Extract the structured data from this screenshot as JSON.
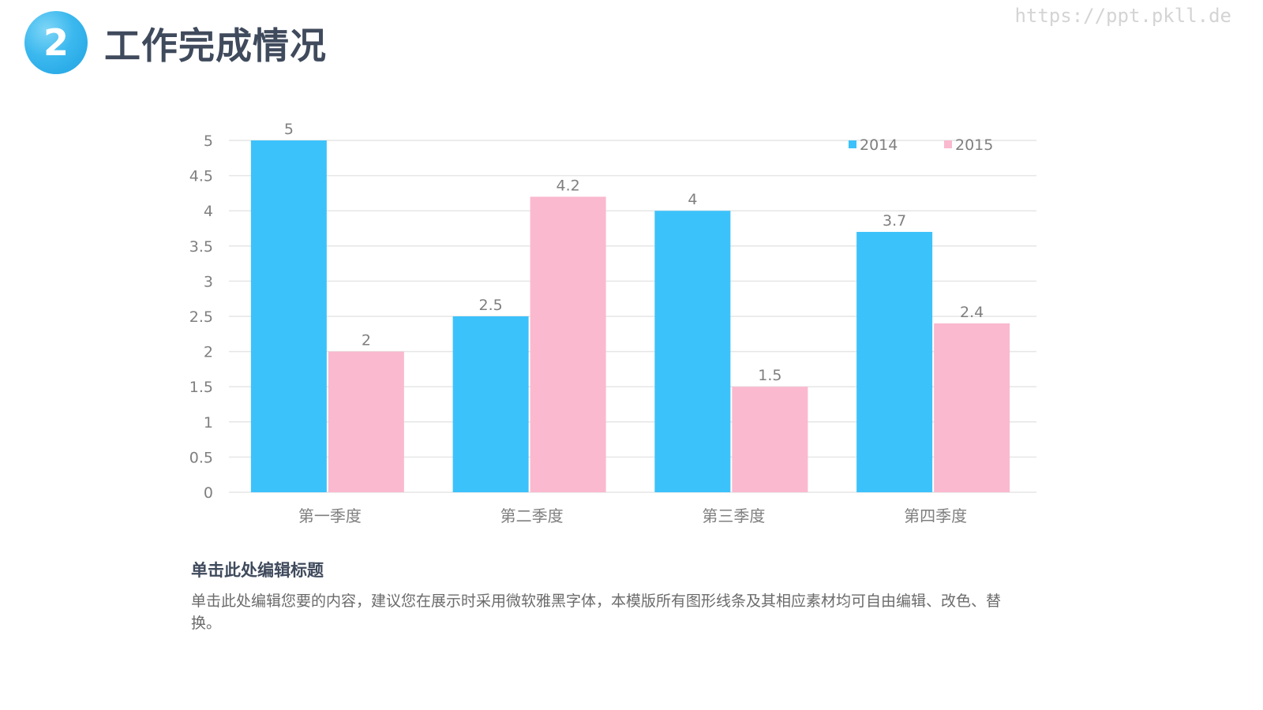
{
  "header": {
    "badge_number": "2",
    "title": "工作完成情况",
    "watermark": "https://ppt.pkll.de"
  },
  "caption": {
    "title": "单击此处编辑标题",
    "body": "单击此处编辑您要的内容，建议您在展示时采用微软雅黑字体，本模版所有图形线条及其相应素材均可自由编辑、改色、替换。"
  },
  "colors": {
    "series_2014": "#3cc2fb",
    "series_2015": "#fab9cf",
    "grid": "#e6e6e6",
    "badge": "#2aaeea"
  },
  "chart_data": {
    "type": "bar",
    "title": "",
    "xlabel": "",
    "ylabel": "",
    "categories": [
      "第一季度",
      "第二季度",
      "第三季度",
      "第四季度"
    ],
    "series": [
      {
        "name": "2014",
        "values": [
          5,
          2.5,
          4,
          3.7
        ]
      },
      {
        "name": "2015",
        "values": [
          2,
          4.2,
          1.5,
          2.4
        ]
      }
    ],
    "ylim": [
      0,
      5
    ],
    "yticks": [
      "0",
      "0.5",
      "1",
      "1.5",
      "2",
      "2.5",
      "3",
      "3.5",
      "4",
      "4.5",
      "5"
    ],
    "data_labels": true,
    "grid": true,
    "legend_position": "top-right"
  }
}
